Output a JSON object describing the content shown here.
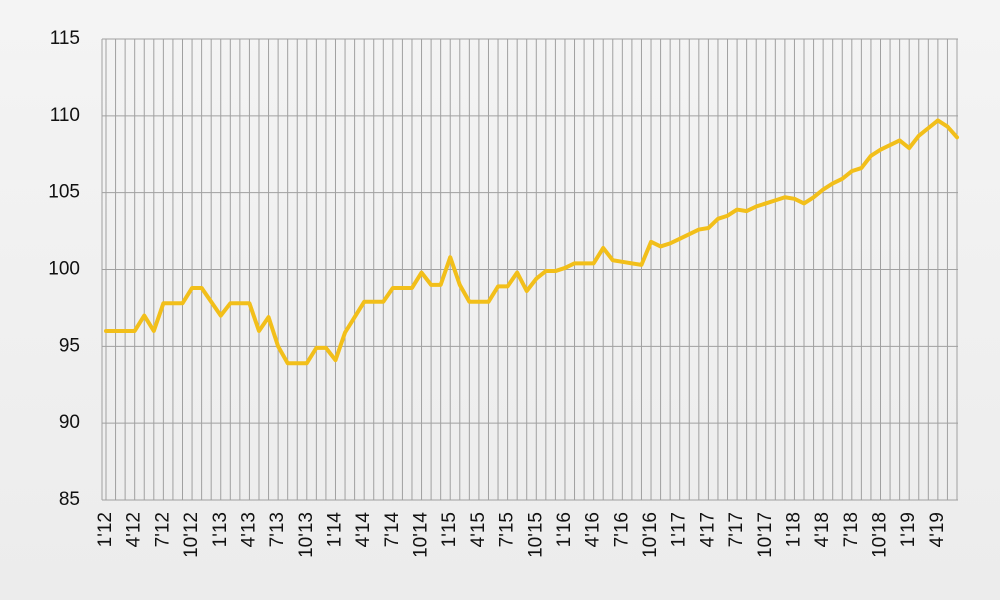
{
  "chart_data": {
    "type": "line",
    "categories": [
      "1'12",
      null,
      null,
      "4'12",
      null,
      null,
      "7'12",
      null,
      null,
      "10'12",
      null,
      null,
      "1'13",
      null,
      null,
      "4'13",
      null,
      null,
      "7'13",
      null,
      null,
      "10'13",
      null,
      null,
      "1'14",
      null,
      null,
      "4'14",
      null,
      null,
      "7'14",
      null,
      null,
      "10'14",
      null,
      null,
      "1'15",
      null,
      null,
      "4'15",
      null,
      null,
      "7'15",
      null,
      null,
      "10'15",
      null,
      null,
      "1'16",
      null,
      null,
      "4'16",
      null,
      null,
      "7'16",
      null,
      null,
      "10'16",
      null,
      null,
      "1'17",
      null,
      null,
      "4'17",
      null,
      null,
      "7'17",
      null,
      null,
      "10'17",
      null,
      null,
      "1'18",
      null,
      null,
      "4'18",
      null,
      null,
      "7'18",
      null,
      null,
      "10'18",
      null,
      null,
      "1'19",
      null,
      null,
      "4'19",
      null,
      null
    ],
    "values": [
      96,
      96,
      96,
      96,
      97,
      96,
      97.8,
      97.8,
      97.8,
      98.8,
      98.8,
      97.9,
      97,
      97.8,
      97.8,
      97.8,
      96,
      96.9,
      95,
      93.9,
      93.9,
      93.9,
      94.9,
      94.9,
      94.1,
      95.9,
      96.9,
      97.9,
      97.9,
      97.9,
      98.8,
      98.8,
      98.8,
      99.8,
      99,
      99,
      100.8,
      99,
      97.9,
      97.9,
      97.9,
      98.9,
      98.9,
      99.8,
      98.6,
      99.4,
      99.9,
      99.9,
      100.1,
      100.4,
      100.4,
      100.4,
      101.4,
      100.6,
      100.5,
      100.4,
      100.3,
      101.8,
      101.5,
      101.7,
      102,
      102.3,
      102.6,
      102.7,
      103.3,
      103.5,
      103.9,
      103.8,
      104.1,
      104.3,
      104.5,
      104.7,
      104.6,
      104.3,
      104.7,
      105.2,
      105.6,
      105.9,
      106.4,
      106.6,
      107.4,
      107.8,
      108.1,
      108.4,
      107.9,
      108.7,
      109.2,
      109.7,
      109.3,
      108.6
    ],
    "color": "#f2bf1a",
    "ylim": [
      85,
      115
    ],
    "yticks": [
      85,
      90,
      95,
      100,
      105,
      110,
      115
    ],
    "grid": true
  }
}
